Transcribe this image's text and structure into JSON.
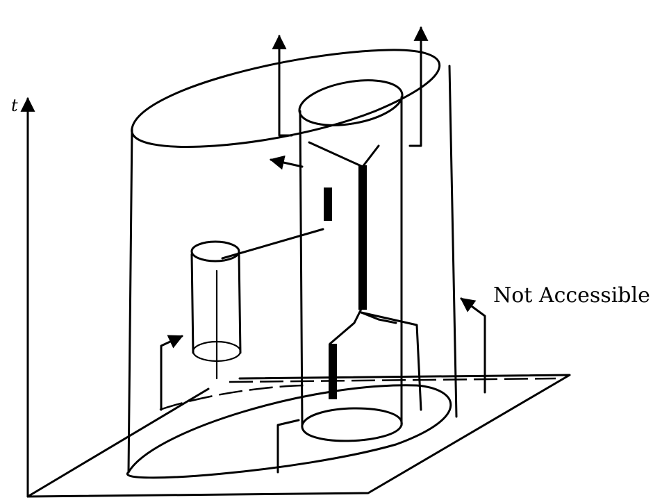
{
  "axis": {
    "time_label": "t"
  },
  "annotations": {
    "region_label": "Not Accessible"
  },
  "colors": {
    "ink": "#000000",
    "background": "#ffffff"
  }
}
